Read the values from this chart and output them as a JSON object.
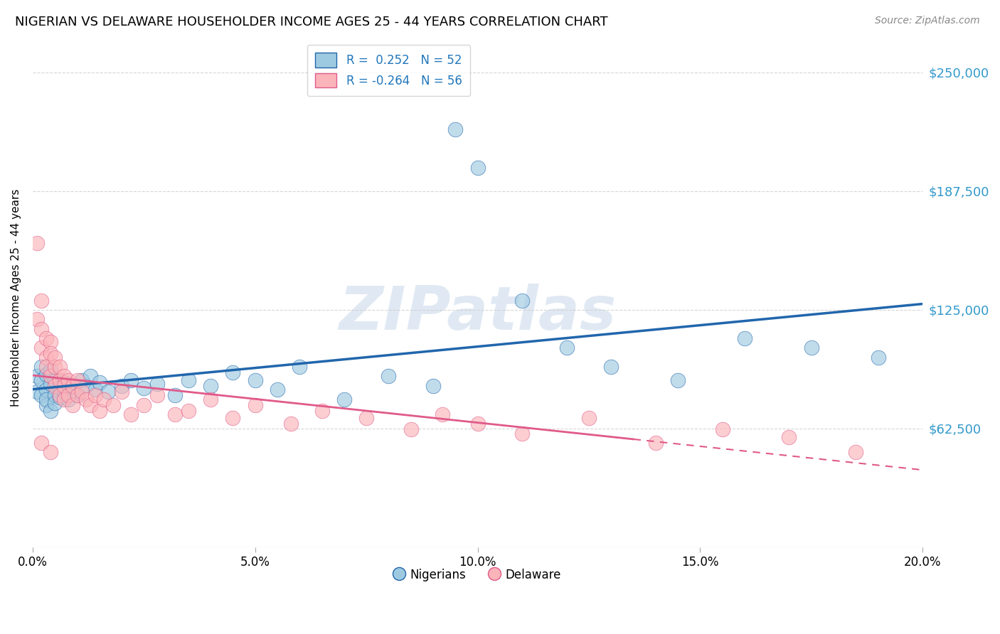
{
  "title": "NIGERIAN VS DELAWARE HOUSEHOLDER INCOME AGES 25 - 44 YEARS CORRELATION CHART",
  "source": "Source: ZipAtlas.com",
  "ylabel": "Householder Income Ages 25 - 44 years",
  "xlim": [
    0.0,
    0.2
  ],
  "ylim": [
    0,
    262500
  ],
  "yticks": [
    0,
    62500,
    125000,
    187500,
    250000
  ],
  "ytick_labels_right": [
    "",
    "$62,500",
    "$125,000",
    "$187,500",
    "$250,000"
  ],
  "xticks": [
    0.0,
    0.05,
    0.1,
    0.15,
    0.2
  ],
  "xtick_labels": [
    "0.0%",
    "5.0%",
    "10.0%",
    "15.0%",
    "20.0%"
  ],
  "watermark": "ZIPatlas",
  "legend_R_blue": "R =  0.252",
  "legend_N_blue": "N = 52",
  "legend_R_pink": "R = -0.264",
  "legend_N_pink": "N = 56",
  "blue_color": "#9ecae1",
  "pink_color": "#fbb4b9",
  "blue_line_color": "#2166ac",
  "pink_line_color": "#e05a8a",
  "nigerians_x": [
    0.001,
    0.001,
    0.002,
    0.002,
    0.002,
    0.003,
    0.003,
    0.003,
    0.003,
    0.004,
    0.004,
    0.004,
    0.005,
    0.005,
    0.005,
    0.006,
    0.006,
    0.007,
    0.007,
    0.008,
    0.008,
    0.009,
    0.01,
    0.011,
    0.012,
    0.013,
    0.014,
    0.015,
    0.017,
    0.02,
    0.022,
    0.025,
    0.028,
    0.032,
    0.035,
    0.04,
    0.045,
    0.05,
    0.055,
    0.06,
    0.07,
    0.08,
    0.09,
    0.095,
    0.1,
    0.11,
    0.12,
    0.13,
    0.145,
    0.16,
    0.175,
    0.19
  ],
  "nigerians_y": [
    82000,
    90000,
    80000,
    88000,
    95000,
    75000,
    83000,
    91000,
    78000,
    86000,
    93000,
    72000,
    80000,
    88000,
    76000,
    84000,
    79000,
    87000,
    82000,
    78000,
    86000,
    83000,
    80000,
    88000,
    85000,
    90000,
    83000,
    87000,
    82000,
    85000,
    88000,
    84000,
    86000,
    80000,
    88000,
    85000,
    92000,
    88000,
    83000,
    95000,
    78000,
    90000,
    85000,
    220000,
    200000,
    130000,
    105000,
    95000,
    88000,
    110000,
    105000,
    100000
  ],
  "delaware_x": [
    0.001,
    0.001,
    0.002,
    0.002,
    0.002,
    0.003,
    0.003,
    0.003,
    0.004,
    0.004,
    0.004,
    0.005,
    0.005,
    0.005,
    0.006,
    0.006,
    0.006,
    0.007,
    0.007,
    0.007,
    0.008,
    0.008,
    0.009,
    0.009,
    0.01,
    0.01,
    0.011,
    0.012,
    0.013,
    0.014,
    0.015,
    0.016,
    0.018,
    0.02,
    0.022,
    0.025,
    0.028,
    0.032,
    0.035,
    0.04,
    0.045,
    0.05,
    0.058,
    0.065,
    0.075,
    0.085,
    0.092,
    0.1,
    0.11,
    0.125,
    0.14,
    0.155,
    0.17,
    0.185,
    0.002,
    0.004
  ],
  "delaware_y": [
    160000,
    120000,
    105000,
    115000,
    130000,
    110000,
    100000,
    95000,
    108000,
    90000,
    102000,
    95000,
    85000,
    100000,
    88000,
    95000,
    80000,
    90000,
    85000,
    78000,
    88000,
    80000,
    85000,
    75000,
    80000,
    88000,
    82000,
    78000,
    75000,
    80000,
    72000,
    78000,
    75000,
    82000,
    70000,
    75000,
    80000,
    70000,
    72000,
    78000,
    68000,
    75000,
    65000,
    72000,
    68000,
    62000,
    70000,
    65000,
    60000,
    68000,
    55000,
    62000,
    58000,
    50000,
    55000,
    50000
  ]
}
